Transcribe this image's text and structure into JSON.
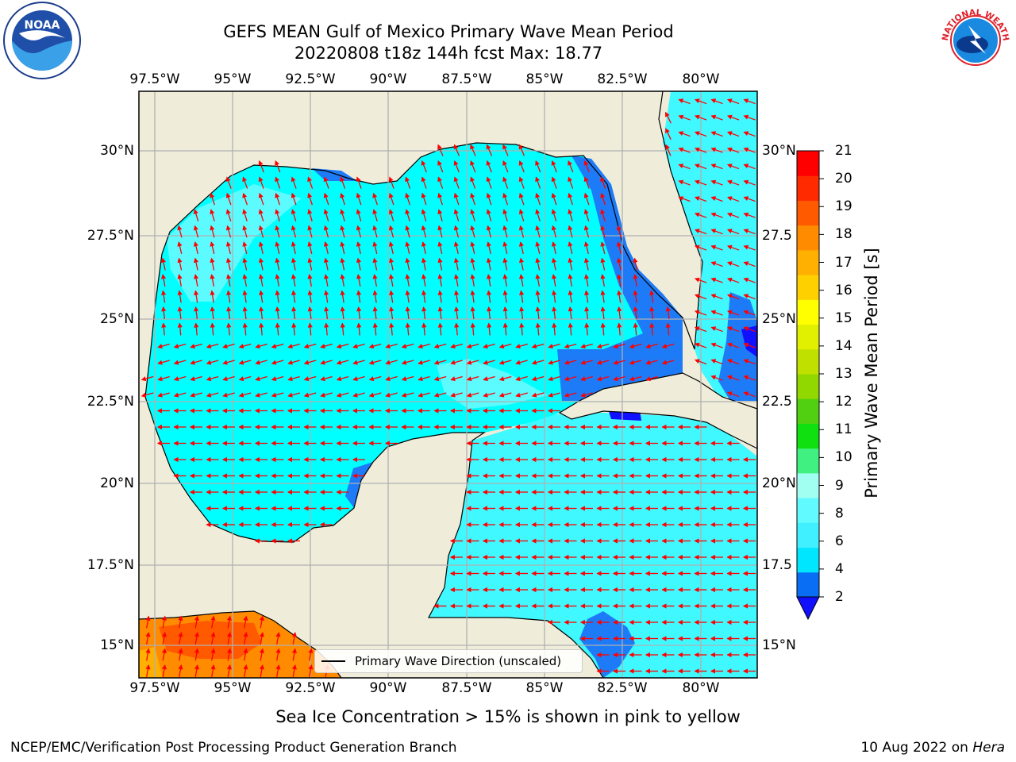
{
  "title": {
    "line1": "GEFS MEAN Gulf of Mexico Primary Wave Mean Period",
    "line2": "20220808 t18z 144h fcst   Max: 18.77"
  },
  "axes": {
    "lon_labels": [
      "97.5°W",
      "95°W",
      "92.5°W",
      "90°W",
      "87.5°W",
      "85°W",
      "82.5°W",
      "80°W"
    ],
    "lat_labels_left": [
      "30°N",
      "27.5°N",
      "25°N",
      "22.5°N",
      "20°N",
      "17.5°N",
      "15°N"
    ],
    "lat_labels_right": [
      "30°N",
      "27.5",
      "25°N",
      "22.5",
      "20°N",
      "17.5",
      "15°N"
    ]
  },
  "legend": {
    "label": "Primary Wave Direction (unscaled)"
  },
  "colorbar": {
    "label": "Primary Wave Mean Period [s]",
    "ticks": [
      "2",
      "4",
      "6",
      "8",
      "9",
      "10",
      "11",
      "12",
      "13",
      "14",
      "15",
      "16",
      "17",
      "18",
      "19",
      "20",
      "21"
    ],
    "colors": [
      "#0a6ef5",
      "#00e6ff",
      "#40f0ff",
      "#60faff",
      "#a0fff0",
      "#40f080",
      "#10e010",
      "#50d010",
      "#90d800",
      "#c0e000",
      "#e0f000",
      "#ffff00",
      "#ffd000",
      "#ffb000",
      "#ff8c00",
      "#ff5a00",
      "#ff2a00",
      "#ff0000"
    ],
    "extend_color": "#1010ff"
  },
  "note": "Sea Ice Concentration > 15% is shown in pink to yellow",
  "footer": {
    "left": "NCEP/EMC/Verification Post Processing Product Generation Branch",
    "date": "10 Aug 2022 on ",
    "host": "Hera"
  },
  "logos": {
    "left": "NOAA",
    "right_text": "NATIONAL WEATHER SERVICE"
  },
  "map_colors": {
    "land": "#efedda",
    "water_main": "#00ffff",
    "water_light": "#5cfbff",
    "grid": "#b0b0b0",
    "arrow": "#ff0000",
    "shallow": "#1e7bf7"
  }
}
